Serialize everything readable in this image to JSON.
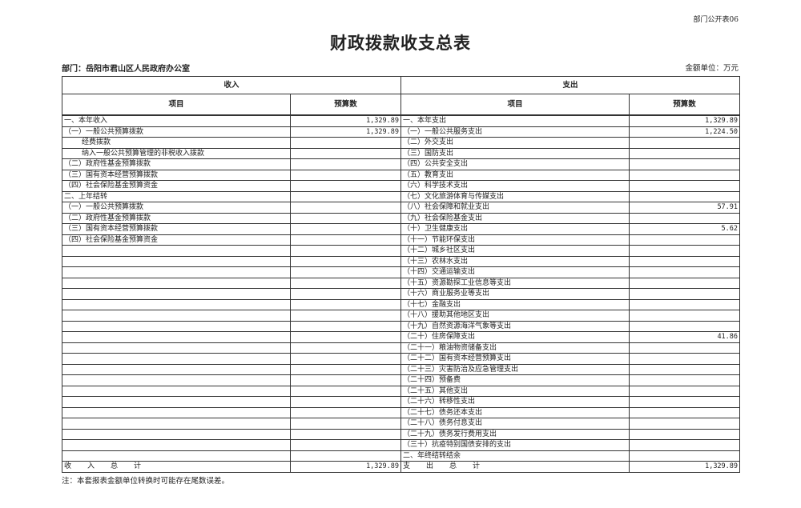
{
  "form_no": "部门公开表06",
  "title": "财政拨款收支总表",
  "department": "部门：岳阳市君山区人民政府办公室",
  "unit": "金额单位：万元",
  "header": {
    "income": "收入",
    "expense": "支出",
    "item": "项目",
    "budget": "预算数"
  },
  "income_rows": [
    {
      "label": "一、本年收入",
      "value": "1,329.89"
    },
    {
      "label": "（一）一般公共预算拨款",
      "value": "1,329.89"
    },
    {
      "label": "经费拨款",
      "value": "",
      "indent": true
    },
    {
      "label": "纳入一般公共预算管理的非税收入拨款",
      "value": "",
      "indent": true
    },
    {
      "label": "（二）政府性基金预算拨款",
      "value": ""
    },
    {
      "label": "（三）国有资本经营预算拨款",
      "value": ""
    },
    {
      "label": "（四）社会保险基金预算资金",
      "value": ""
    },
    {
      "label": "二、上年结转",
      "value": ""
    },
    {
      "label": "（一）一般公共预算拨款",
      "value": ""
    },
    {
      "label": "（二）政府性基金预算拨款",
      "value": ""
    },
    {
      "label": "（三）国有资本经营预算拨款",
      "value": ""
    },
    {
      "label": "（四）社会保险基金预算资金",
      "value": ""
    }
  ],
  "expense_rows": [
    {
      "label": "一、本年支出",
      "value": "1,329.89"
    },
    {
      "label": "（一）一般公共服务支出",
      "value": "1,224.50"
    },
    {
      "label": "（二）外交支出",
      "value": ""
    },
    {
      "label": "（三）国防支出",
      "value": ""
    },
    {
      "label": "（四）公共安全支出",
      "value": ""
    },
    {
      "label": "（五）教育支出",
      "value": ""
    },
    {
      "label": "（六）科学技术支出",
      "value": ""
    },
    {
      "label": "（七）文化旅游体育与传媒支出",
      "value": ""
    },
    {
      "label": "（八）社会保障和就业支出",
      "value": "57.91"
    },
    {
      "label": "（九）社会保险基金支出",
      "value": ""
    },
    {
      "label": "（十）卫生健康支出",
      "value": "5.62"
    },
    {
      "label": "（十一）节能环保支出",
      "value": ""
    },
    {
      "label": "（十二）城乡社区支出",
      "value": ""
    },
    {
      "label": "（十三）农林水支出",
      "value": ""
    },
    {
      "label": "（十四）交通运输支出",
      "value": ""
    },
    {
      "label": "（十五）资源勘探工业信息等支出",
      "value": ""
    },
    {
      "label": "（十六）商业服务业等支出",
      "value": ""
    },
    {
      "label": "（十七）金融支出",
      "value": ""
    },
    {
      "label": "（十八）援助其他地区支出",
      "value": ""
    },
    {
      "label": "（十九）自然资源海洋气象等支出",
      "value": ""
    },
    {
      "label": "（二十）住房保障支出",
      "value": "41.86"
    },
    {
      "label": "（二十一）粮油物资储备支出",
      "value": ""
    },
    {
      "label": "（二十二）国有资本经营预算支出",
      "value": ""
    },
    {
      "label": "（二十三）灾害防治及应急管理支出",
      "value": ""
    },
    {
      "label": "（二十四）预备费",
      "value": ""
    },
    {
      "label": "（二十五）其他支出",
      "value": ""
    },
    {
      "label": "（二十六）转移性支出",
      "value": ""
    },
    {
      "label": "（二十七）债务还本支出",
      "value": ""
    },
    {
      "label": "（二十八）债务付息支出",
      "value": ""
    },
    {
      "label": "（二十九）债务发行费用支出",
      "value": ""
    },
    {
      "label": "（三十）抗疫特别国债安排的支出",
      "value": ""
    },
    {
      "label": "二、年终结转结余",
      "value": ""
    }
  ],
  "totals": {
    "income_label": "收入总计",
    "income_value": "1,329.89",
    "expense_label": "支出总计",
    "expense_value": "1,329.89"
  },
  "note": "注：本套报表金额单位转换时可能存在尾数误差。"
}
